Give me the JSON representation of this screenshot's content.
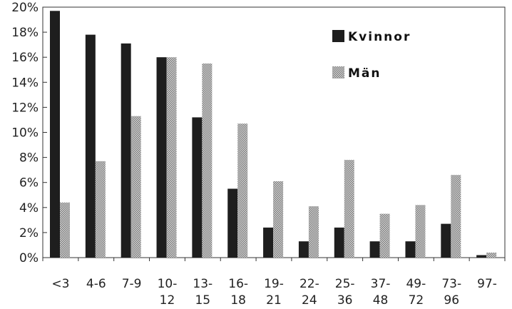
{
  "chart_data": {
    "type": "bar",
    "categories": [
      [
        "<3"
      ],
      [
        "4-6"
      ],
      [
        "7-9"
      ],
      [
        "10-",
        "12"
      ],
      [
        "13-",
        "15"
      ],
      [
        "16-",
        "18"
      ],
      [
        "19-",
        "21"
      ],
      [
        "22-",
        "24"
      ],
      [
        "25-",
        "36"
      ],
      [
        "37-",
        "48"
      ],
      [
        "49-",
        "72"
      ],
      [
        "73-",
        "96"
      ],
      [
        "97-"
      ]
    ],
    "series": [
      {
        "name": "Kvinnor",
        "color": "#1e1e1e",
        "values": [
          19.7,
          17.8,
          17.1,
          16.0,
          11.2,
          5.5,
          2.4,
          1.3,
          2.4,
          1.3,
          1.3,
          2.7,
          0.2
        ]
      },
      {
        "name": "Män",
        "color": "#9a9a9a",
        "values": [
          4.4,
          7.7,
          11.3,
          16.0,
          15.5,
          10.7,
          6.1,
          4.1,
          7.8,
          3.5,
          4.2,
          6.6,
          0.4
        ]
      }
    ],
    "ylim": [
      0,
      20
    ],
    "yticks": [
      "0%",
      "2%",
      "4%",
      "6%",
      "8%",
      "10%",
      "12%",
      "14%",
      "16%",
      "18%",
      "20%"
    ],
    "ytick_values": [
      0,
      2,
      4,
      6,
      8,
      10,
      12,
      14,
      16,
      18,
      20
    ],
    "legend_position": "top-right",
    "grid": false
  }
}
